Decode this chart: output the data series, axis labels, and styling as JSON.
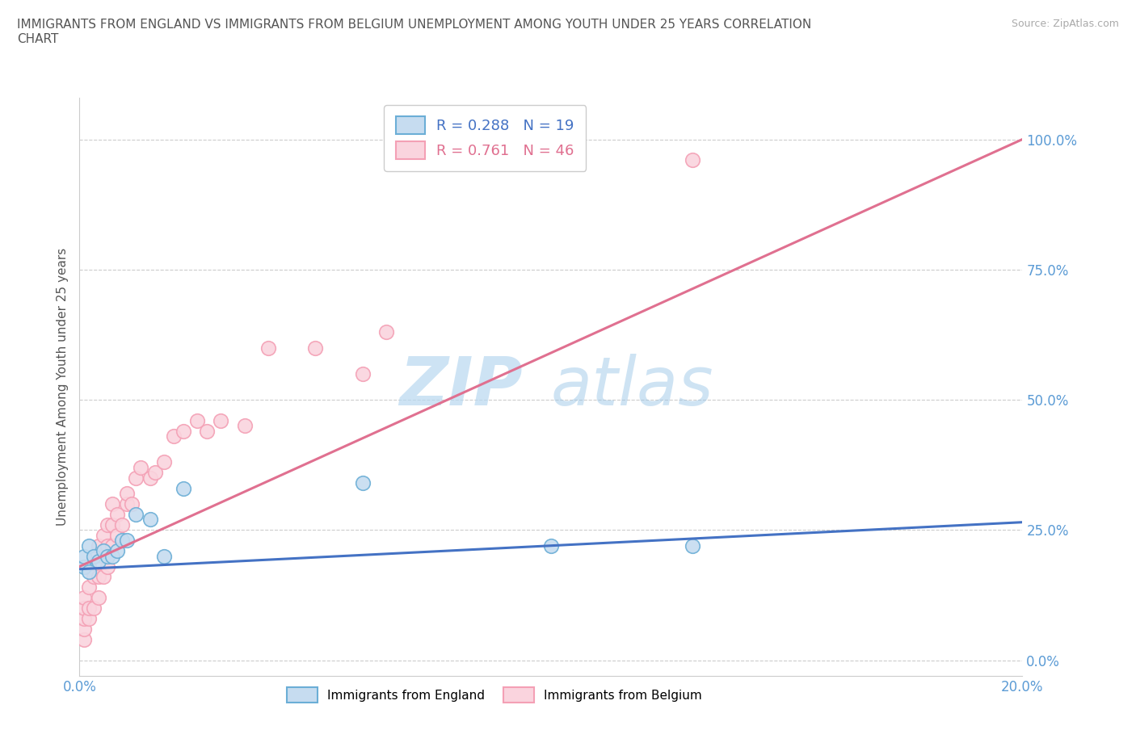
{
  "title": "IMMIGRANTS FROM ENGLAND VS IMMIGRANTS FROM BELGIUM UNEMPLOYMENT AMONG YOUTH UNDER 25 YEARS CORRELATION\nCHART",
  "source": "Source: ZipAtlas.com",
  "ylabel": "Unemployment Among Youth under 25 years",
  "xlim": [
    0.0,
    0.2
  ],
  "ylim": [
    -0.03,
    1.08
  ],
  "yticks": [
    0.0,
    0.25,
    0.5,
    0.75,
    1.0
  ],
  "yticklabels": [
    "0.0%",
    "25.0%",
    "50.0%",
    "75.0%",
    "100.0%"
  ],
  "xticks": [
    0.0,
    0.04,
    0.08,
    0.12,
    0.16,
    0.2
  ],
  "xticklabels": [
    "0.0%",
    "",
    "",
    "",
    "",
    "20.0%"
  ],
  "england_color": "#6baed6",
  "england_fill": "#c6dcf0",
  "belgium_color": "#f4a0b5",
  "belgium_fill": "#fad4de",
  "england_R": 0.288,
  "england_N": 19,
  "belgium_R": 0.761,
  "belgium_N": 46,
  "england_line_color": "#4472c4",
  "belgium_line_color": "#e07090",
  "england_scatter_x": [
    0.001,
    0.001,
    0.002,
    0.002,
    0.003,
    0.004,
    0.005,
    0.006,
    0.007,
    0.008,
    0.009,
    0.01,
    0.012,
    0.015,
    0.018,
    0.022,
    0.06,
    0.1,
    0.13
  ],
  "england_scatter_y": [
    0.18,
    0.2,
    0.17,
    0.22,
    0.2,
    0.19,
    0.21,
    0.2,
    0.2,
    0.21,
    0.23,
    0.23,
    0.28,
    0.27,
    0.2,
    0.33,
    0.34,
    0.22,
    0.22
  ],
  "belgium_scatter_x": [
    0.001,
    0.001,
    0.001,
    0.001,
    0.001,
    0.002,
    0.002,
    0.002,
    0.002,
    0.003,
    0.003,
    0.003,
    0.004,
    0.004,
    0.004,
    0.005,
    0.005,
    0.005,
    0.006,
    0.006,
    0.006,
    0.007,
    0.007,
    0.007,
    0.008,
    0.008,
    0.009,
    0.01,
    0.01,
    0.011,
    0.012,
    0.013,
    0.015,
    0.016,
    0.018,
    0.02,
    0.022,
    0.025,
    0.027,
    0.03,
    0.035,
    0.04,
    0.05,
    0.06,
    0.065,
    0.13
  ],
  "belgium_scatter_y": [
    0.04,
    0.06,
    0.08,
    0.1,
    0.12,
    0.08,
    0.1,
    0.14,
    0.18,
    0.1,
    0.16,
    0.2,
    0.12,
    0.16,
    0.22,
    0.16,
    0.2,
    0.24,
    0.18,
    0.22,
    0.26,
    0.22,
    0.26,
    0.3,
    0.24,
    0.28,
    0.26,
    0.3,
    0.32,
    0.3,
    0.35,
    0.37,
    0.35,
    0.36,
    0.38,
    0.43,
    0.44,
    0.46,
    0.44,
    0.46,
    0.45,
    0.6,
    0.6,
    0.55,
    0.63,
    0.96
  ],
  "watermark_zip": "ZIP",
  "watermark_atlas": "atlas",
  "background_color": "#ffffff",
  "grid_color": "#cccccc",
  "england_line_x": [
    0.0,
    0.2
  ],
  "england_line_y": [
    0.175,
    0.265
  ],
  "belgium_line_x": [
    0.0,
    0.2
  ],
  "belgium_line_y": [
    0.18,
    1.0
  ]
}
